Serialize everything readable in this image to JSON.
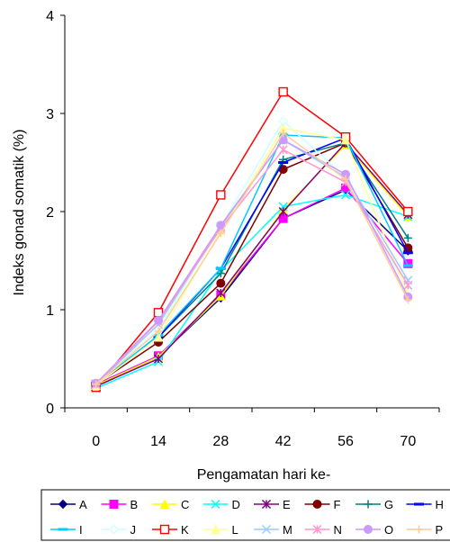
{
  "chart_data": {
    "type": "line",
    "title": "",
    "xlabel": "Pengamatan hari ke-",
    "ylabel": "Indeks gonad somatik (%)",
    "x": [
      0,
      14,
      28,
      42,
      56,
      70
    ],
    "ylim": [
      0,
      4
    ],
    "yticks": [
      0,
      1,
      2,
      3,
      4
    ],
    "grid": false,
    "legend_position": "bottom",
    "series": [
      {
        "name": "A",
        "color": "#000080",
        "marker": "diamond",
        "values": [
          0.23,
          0.52,
          1.12,
          1.93,
          2.22,
          1.6
        ]
      },
      {
        "name": "B",
        "color": "#ff00ff",
        "marker": "square",
        "values": [
          0.24,
          0.53,
          1.15,
          1.93,
          2.24,
          1.47
        ]
      },
      {
        "name": "C",
        "color": "#ffff00",
        "marker": "triangle",
        "values": [
          0.23,
          0.52,
          1.14,
          2.02,
          2.68,
          1.95
        ]
      },
      {
        "name": "D",
        "color": "#00ffff",
        "marker": "x",
        "values": [
          0.2,
          0.47,
          1.4,
          2.05,
          2.17,
          1.95
        ]
      },
      {
        "name": "E",
        "color": "#800080",
        "marker": "star",
        "values": [
          0.22,
          0.5,
          1.17,
          2.0,
          2.7,
          1.97
        ]
      },
      {
        "name": "F",
        "color": "#800000",
        "marker": "circle",
        "values": [
          0.24,
          0.67,
          1.27,
          2.43,
          2.7,
          1.63
        ]
      },
      {
        "name": "G",
        "color": "#008080",
        "marker": "plus",
        "values": [
          0.24,
          0.72,
          1.37,
          2.53,
          2.7,
          1.73
        ]
      },
      {
        "name": "H",
        "color": "#0000ff",
        "marker": "dash",
        "values": [
          0.25,
          0.72,
          1.42,
          2.5,
          2.75,
          1.58
        ]
      },
      {
        "name": "I",
        "color": "#00ccff",
        "marker": "dash",
        "values": [
          0.24,
          0.74,
          1.42,
          2.78,
          2.75,
          1.45
        ]
      },
      {
        "name": "J",
        "color": "#ccffff",
        "marker": "diamond-open",
        "values": [
          0.24,
          0.8,
          1.85,
          2.92,
          2.35,
          1.2
        ]
      },
      {
        "name": "K",
        "color": "#ff0000",
        "marker": "square-open",
        "values": [
          0.21,
          0.97,
          2.17,
          3.22,
          2.76,
          2.0
        ]
      },
      {
        "name": "L",
        "color": "#ffff99",
        "marker": "triangle",
        "values": [
          0.23,
          0.72,
          1.8,
          2.85,
          2.73,
          1.15
        ]
      },
      {
        "name": "M",
        "color": "#99ccff",
        "marker": "x",
        "values": [
          0.24,
          0.85,
          1.85,
          2.73,
          2.35,
          1.3
        ]
      },
      {
        "name": "N",
        "color": "#ff99cc",
        "marker": "star",
        "values": [
          0.24,
          0.88,
          1.83,
          2.63,
          2.3,
          1.25
        ]
      },
      {
        "name": "O",
        "color": "#cc99ff",
        "marker": "circle",
        "values": [
          0.25,
          0.89,
          1.86,
          2.73,
          2.38,
          1.13
        ]
      },
      {
        "name": "P",
        "color": "#ffcc99",
        "marker": "plus",
        "values": [
          0.24,
          0.78,
          1.78,
          2.8,
          2.33,
          1.1
        ]
      }
    ]
  }
}
